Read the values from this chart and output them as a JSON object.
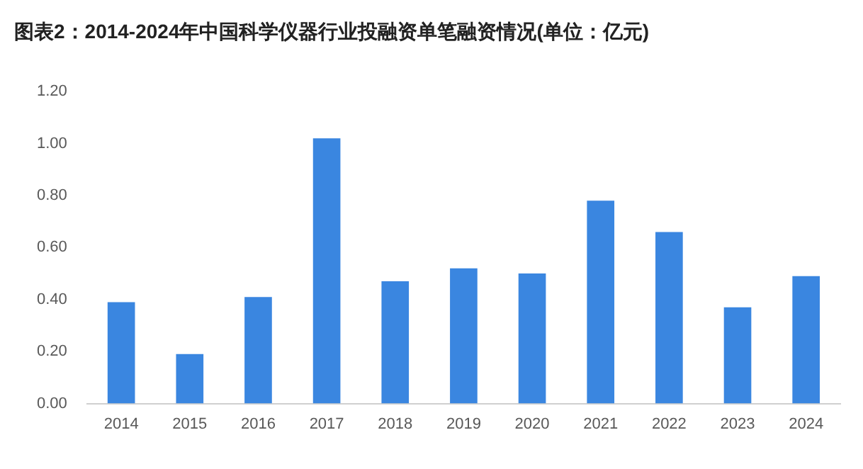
{
  "chart_data": {
    "type": "bar",
    "title": "图表2：2014-2024年中国科学仪器行业投融资单笔融资情况(单位：亿元)",
    "categories": [
      "2014",
      "2015",
      "2016",
      "2017",
      "2018",
      "2019",
      "2020",
      "2021",
      "2022",
      "2023",
      "2024"
    ],
    "values": [
      0.39,
      0.19,
      0.41,
      1.02,
      0.47,
      0.52,
      0.5,
      0.78,
      0.66,
      0.37,
      0.49
    ],
    "color": "#3a86e0",
    "ylim": [
      0,
      1.2
    ],
    "yticks": [
      {
        "value": 0,
        "label": "0.00"
      },
      {
        "value": 0.2,
        "label": "0.20"
      },
      {
        "value": 0.4,
        "label": "0.40"
      },
      {
        "value": 0.6,
        "label": "0.60"
      },
      {
        "value": 0.8,
        "label": "0.80"
      },
      {
        "value": 1,
        "label": "1.00"
      },
      {
        "value": 1.2,
        "label": "1.20"
      }
    ],
    "grid": false,
    "legend": false
  }
}
